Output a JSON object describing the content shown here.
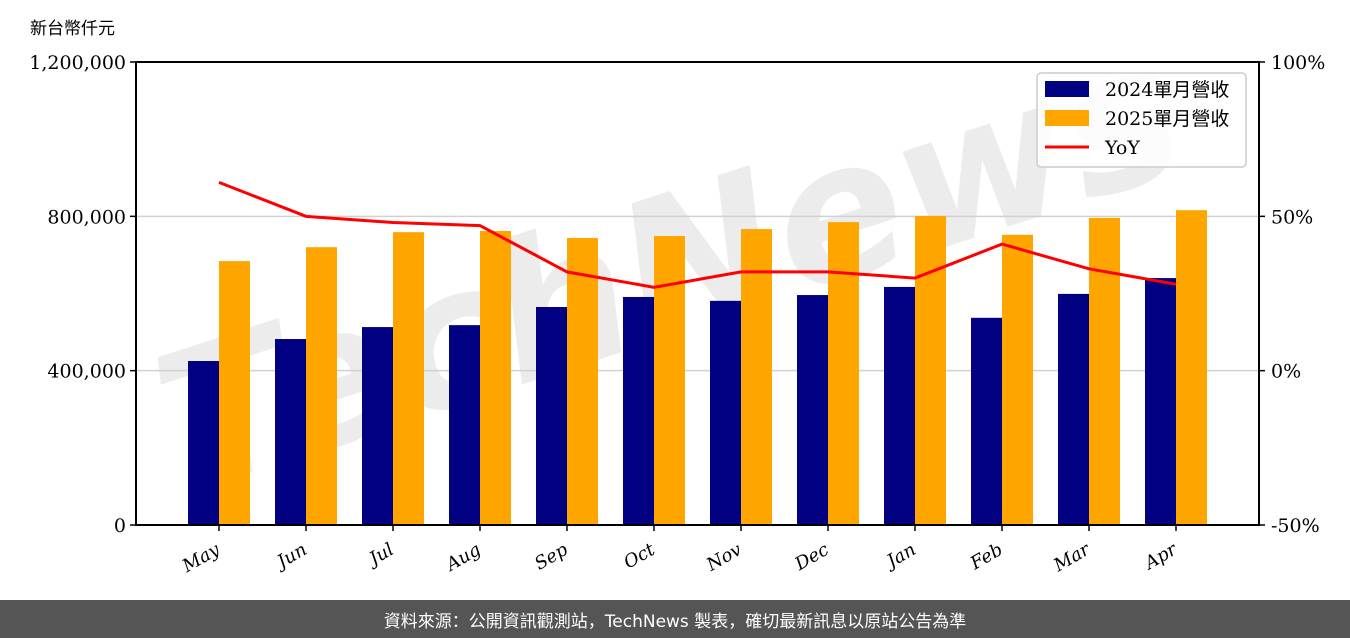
{
  "chart_data": {
    "type": "bar",
    "title": "",
    "ylabel": "新台幣仟元",
    "y2label": "",
    "xlabel": "",
    "categories": [
      "May",
      "Jun",
      "Jul",
      "Aug",
      "Sep",
      "Oct",
      "Nov",
      "Dec",
      "Jan",
      "Feb",
      "Mar",
      "Apr"
    ],
    "series": [
      {
        "name": "2024單月營收",
        "type": "bar",
        "color": "#000080",
        "axis": "left",
        "values": [
          425000,
          482000,
          513000,
          518000,
          565000,
          591000,
          581000,
          596000,
          617000,
          537000,
          599000,
          640000
        ]
      },
      {
        "name": "2025單月營收",
        "type": "bar",
        "color": "#FFA500",
        "axis": "left",
        "values": [
          684000,
          720000,
          759000,
          762000,
          744000,
          749000,
          767000,
          785000,
          801000,
          752000,
          796000,
          816000
        ]
      },
      {
        "name": "YoY",
        "type": "line",
        "color": "#FF0000",
        "axis": "right",
        "values": [
          61,
          50,
          48,
          47,
          32,
          27,
          32,
          32,
          30,
          41,
          33,
          28
        ]
      }
    ],
    "ylim": [
      0,
      1200000
    ],
    "y2lim": [
      -50,
      100
    ],
    "yticks": [
      "0",
      "400,000",
      "800,000",
      "1,200,000"
    ],
    "y2ticks": [
      "-50%",
      "0%",
      "50%",
      "100%"
    ],
    "grid": true,
    "legend_position": "upper right"
  },
  "labels": {
    "unit": "新台幣仟元",
    "footer": "資料來源：公開資訊觀測站，TechNews 製表，確切最新訊息以原站公告為準",
    "watermark": "TechNews"
  }
}
